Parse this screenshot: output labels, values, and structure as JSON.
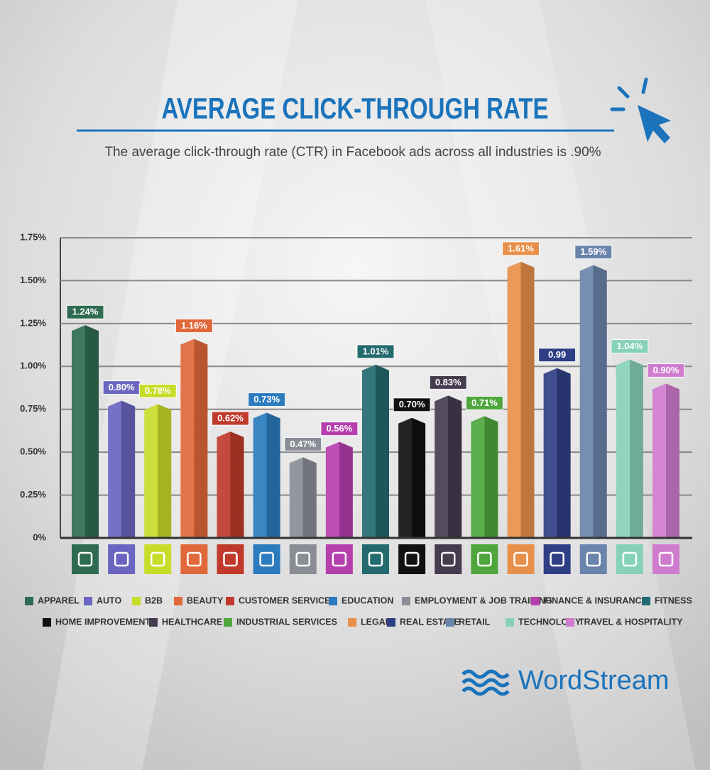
{
  "chart_data": {
    "type": "bar",
    "title": "AVERAGE CLICK-THROUGH RATE",
    "subtitle": "The average click-through rate (CTR) in Facebook ads across all industries is .90%",
    "categories": [
      "APPAREL",
      "AUTO",
      "B2B",
      "BEAUTY",
      "CUSTOMER SERVICES",
      "EDUCATION",
      "EMPLOYMENT & JOB TRAINING",
      "FINANCE & INSURANCE",
      "FITNESS",
      "HOME IMPROVEMENT",
      "HEALTHCARE",
      "INDUSTRIAL SERVICES",
      "LEGAL",
      "REAL ESTATE",
      "RETAIL",
      "TECHNOLOGY",
      "TRAVEL & HOSPITALITY"
    ],
    "values": [
      1.24,
      0.8,
      0.78,
      1.16,
      0.62,
      0.73,
      0.47,
      0.56,
      1.01,
      0.7,
      0.83,
      0.71,
      1.61,
      0.99,
      1.59,
      1.04,
      0.9
    ],
    "value_labels": [
      "1.24%",
      "0.80%",
      "0.78%",
      "1.16%",
      "0.62%",
      "0.73%",
      "0.47%",
      "0.56%",
      "1.01%",
      "0.70%",
      "0.83%",
      "0.71%",
      "1.61%",
      "0.99",
      "1.59%",
      "1.04%",
      "0.90%"
    ],
    "colors": [
      "#2e6b52",
      "#6a65c0",
      "#c8dc2a",
      "#e0683a",
      "#c0392b",
      "#2c7bbf",
      "#8a8d96",
      "#b63fae",
      "#236a6e",
      "#111111",
      "#453c4f",
      "#4ea63c",
      "#e8904a",
      "#2f3f86",
      "#6a84ab",
      "#86d2b8",
      "#d07cce"
    ],
    "ylim": [
      0,
      1.75
    ],
    "yticks": [
      {
        "value": 0,
        "label": "0%"
      },
      {
        "value": 0.25,
        "label": "0.25%"
      },
      {
        "value": 0.5,
        "label": "0.50%"
      },
      {
        "value": 0.75,
        "label": "0.75%"
      },
      {
        "value": 1,
        "label": "1.00%"
      },
      {
        "value": 1.25,
        "label": "1.25%"
      },
      {
        "value": 1.5,
        "label": "1.50%"
      },
      {
        "value": 1.75,
        "label": "1.75%"
      }
    ],
    "grid": true,
    "brand": "WordStream"
  }
}
